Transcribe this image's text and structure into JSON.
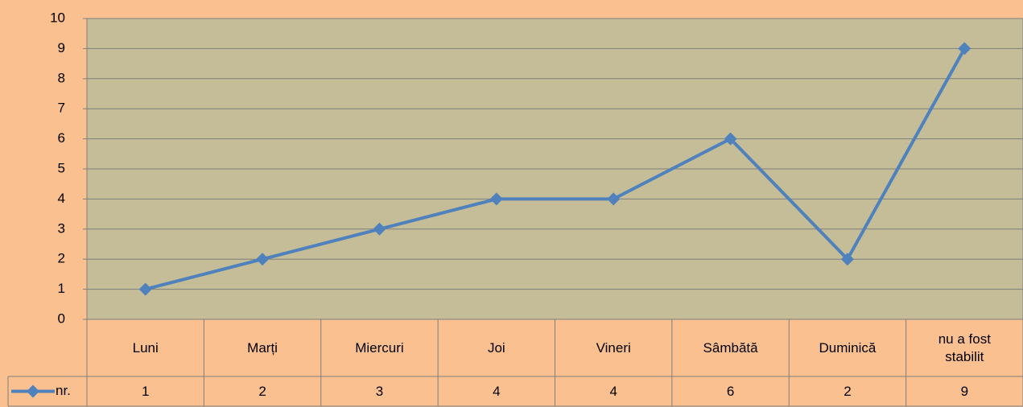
{
  "chart_data": {
    "type": "line",
    "categories": [
      "Luni",
      "Marți",
      "Miercuri",
      "Joi",
      "Vineri",
      "Sâmbătă",
      "Duminică",
      "nu a fost stabilit"
    ],
    "series": [
      {
        "name": "nr.",
        "color": "#4f81bd",
        "values": [
          1,
          2,
          3,
          4,
          4,
          6,
          2,
          9
        ]
      }
    ],
    "ylim": [
      0,
      10
    ],
    "yticks": [
      0,
      1,
      2,
      3,
      4,
      5,
      6,
      7,
      8,
      9,
      10
    ],
    "grid": true
  }
}
